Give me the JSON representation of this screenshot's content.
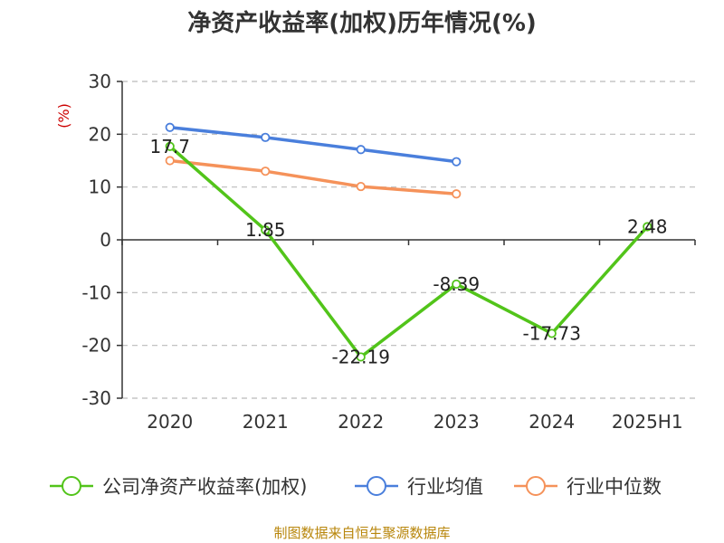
{
  "chart_data": {
    "type": "line",
    "title": "净资产收益率(加权)历年情况(%)",
    "unit_label": "(%)",
    "categories": [
      "2020",
      "2021",
      "2022",
      "2023",
      "2024",
      "2025H1"
    ],
    "ylim": [
      -30,
      30
    ],
    "yticks": [
      30,
      20,
      10,
      0,
      -10,
      -20,
      -30
    ],
    "grid": true,
    "legend_position": "bottom",
    "series": [
      {
        "name": "公司净资产收益率(加权)",
        "color": "#52c41a",
        "values": [
          17.7,
          1.85,
          -22.19,
          -8.39,
          -17.73,
          2.48
        ],
        "labels": [
          "17.7",
          "1.85",
          "-22.19",
          "-8.39",
          "-17.73",
          "2.48"
        ]
      },
      {
        "name": "行业均值",
        "color": "#4a7fdc",
        "values": [
          21.3,
          19.4,
          17.1,
          14.8,
          null,
          null
        ]
      },
      {
        "name": "行业中位数",
        "color": "#f5925a",
        "values": [
          15.0,
          13.0,
          10.1,
          8.7,
          null,
          null
        ]
      }
    ]
  },
  "source": "制图数据来自恒生聚源数据库"
}
